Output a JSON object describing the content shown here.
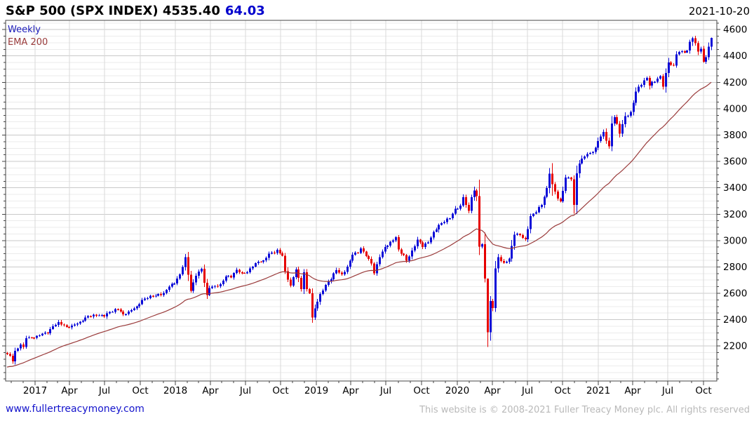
{
  "header": {
    "title_main": "S&P 500 (SPX INDEX) 4535.40",
    "change": "64.03",
    "date": "2021-10-20"
  },
  "legend": {
    "timeframe": "Weekly",
    "overlay": "EMA 200"
  },
  "footer": {
    "site": "www.fullertreacymoney.com",
    "copyright": "This website is © 2008-2021 Fuller Treacy Money plc. All rights reserved"
  },
  "chart_data": {
    "type": "candlestick",
    "title": "S&P 500 (SPX INDEX)",
    "last_price": 4535.4,
    "change": 64.03,
    "timeframe": "Weekly",
    "overlay": "EMA 200 (200-day / 40-week exponential moving average)",
    "start_week": "2016-10-17",
    "weeks": 262,
    "y_axis": {
      "min": 1935,
      "max": 4670,
      "tick_labels": [
        2200,
        2400,
        2600,
        2800,
        3000,
        3200,
        3400,
        3600,
        3800,
        4000,
        4200,
        4400,
        4600
      ],
      "minor_step": 50
    },
    "x_axis": {
      "tick_labels": [
        "2017",
        "Apr",
        "Jul",
        "Oct",
        "2018",
        "Apr",
        "Jul",
        "Oct",
        "2019",
        "Apr",
        "Jul",
        "Oct",
        "2020",
        "Apr",
        "Jul",
        "Oct",
        "2021",
        "Apr",
        "Jul",
        "Oct"
      ],
      "note": "labeled ticks at quarter starts, minor ticks monthly"
    },
    "ema": {
      "period_weeks": 40,
      "seed": 2035
    },
    "close_anchors": [
      [
        0,
        2141
      ],
      [
        1,
        2126
      ],
      [
        2,
        2085
      ],
      [
        3,
        2164
      ],
      [
        4,
        2182
      ],
      [
        5,
        2213
      ],
      [
        6,
        2192
      ],
      [
        7,
        2260
      ],
      [
        9,
        2264
      ],
      [
        11,
        2277
      ],
      [
        13,
        2294
      ],
      [
        15,
        2297
      ],
      [
        17,
        2351
      ],
      [
        19,
        2383
      ],
      [
        22,
        2344
      ],
      [
        24,
        2356
      ],
      [
        27,
        2384
      ],
      [
        29,
        2416
      ],
      [
        32,
        2439
      ],
      [
        34,
        2433
      ],
      [
        36,
        2425
      ],
      [
        38,
        2459
      ],
      [
        41,
        2477
      ],
      [
        43,
        2441
      ],
      [
        45,
        2461
      ],
      [
        48,
        2502
      ],
      [
        50,
        2549
      ],
      [
        53,
        2581
      ],
      [
        55,
        2582
      ],
      [
        58,
        2602
      ],
      [
        60,
        2652
      ],
      [
        62,
        2674
      ],
      [
        64,
        2743
      ],
      [
        66,
        2873
      ],
      [
        68,
        2620
      ],
      [
        70,
        2732
      ],
      [
        72,
        2787
      ],
      [
        74,
        2588
      ],
      [
        75,
        2641
      ],
      [
        77,
        2656
      ],
      [
        79,
        2670
      ],
      [
        81,
        2728
      ],
      [
        83,
        2721
      ],
      [
        85,
        2779
      ],
      [
        87,
        2755
      ],
      [
        89,
        2760
      ],
      [
        91,
        2802
      ],
      [
        93,
        2840
      ],
      [
        95,
        2850
      ],
      [
        97,
        2902
      ],
      [
        99,
        2905
      ],
      [
        100,
        2930
      ],
      [
        102,
        2886
      ],
      [
        103,
        2767
      ],
      [
        105,
        2659
      ],
      [
        106,
        2723
      ],
      [
        107,
        2781
      ],
      [
        109,
        2632
      ],
      [
        110,
        2760
      ],
      [
        111,
        2633
      ],
      [
        112,
        2600
      ],
      [
        113,
        2417
      ],
      [
        114,
        2486
      ],
      [
        116,
        2596
      ],
      [
        118,
        2665
      ],
      [
        120,
        2707
      ],
      [
        122,
        2776
      ],
      [
        124,
        2743
      ],
      [
        126,
        2801
      ],
      [
        128,
        2893
      ],
      [
        130,
        2905
      ],
      [
        131,
        2940
      ],
      [
        133,
        2881
      ],
      [
        135,
        2826
      ],
      [
        136,
        2752
      ],
      [
        138,
        2873
      ],
      [
        140,
        2950
      ],
      [
        142,
        2990
      ],
      [
        144,
        3026
      ],
      [
        145,
        2932
      ],
      [
        147,
        2889
      ],
      [
        148,
        2847
      ],
      [
        150,
        2926
      ],
      [
        152,
        3007
      ],
      [
        154,
        2952
      ],
      [
        156,
        2986
      ],
      [
        158,
        3067
      ],
      [
        160,
        3120
      ],
      [
        162,
        3141
      ],
      [
        164,
        3169
      ],
      [
        166,
        3240
      ],
      [
        168,
        3265
      ],
      [
        169,
        3330
      ],
      [
        171,
        3225
      ],
      [
        172,
        3328
      ],
      [
        173,
        3380
      ],
      [
        174,
        3337
      ],
      [
        175,
        2954
      ],
      [
        176,
        2972
      ],
      [
        177,
        2711
      ],
      [
        178,
        2305
      ],
      [
        179,
        2541
      ],
      [
        180,
        2489
      ],
      [
        181,
        2790
      ],
      [
        182,
        2875
      ],
      [
        184,
        2831
      ],
      [
        186,
        2864
      ],
      [
        188,
        3044
      ],
      [
        190,
        3041
      ],
      [
        192,
        3009
      ],
      [
        194,
        3185
      ],
      [
        196,
        3216
      ],
      [
        198,
        3271
      ],
      [
        200,
        3397
      ],
      [
        201,
        3508
      ],
      [
        202,
        3427
      ],
      [
        204,
        3319
      ],
      [
        205,
        3298
      ],
      [
        207,
        3477
      ],
      [
        209,
        3465
      ],
      [
        210,
        3270
      ],
      [
        211,
        3509
      ],
      [
        212,
        3585
      ],
      [
        214,
        3638
      ],
      [
        216,
        3663
      ],
      [
        218,
        3703
      ],
      [
        219,
        3756
      ],
      [
        221,
        3825
      ],
      [
        223,
        3714
      ],
      [
        224,
        3887
      ],
      [
        225,
        3935
      ],
      [
        227,
        3811
      ],
      [
        229,
        3943
      ],
      [
        231,
        3975
      ],
      [
        233,
        4129
      ],
      [
        235,
        4180
      ],
      [
        237,
        4233
      ],
      [
        238,
        4174
      ],
      [
        240,
        4204
      ],
      [
        242,
        4247
      ],
      [
        243,
        4166
      ],
      [
        245,
        4352
      ],
      [
        247,
        4327
      ],
      [
        248,
        4412
      ],
      [
        250,
        4437
      ],
      [
        252,
        4442
      ],
      [
        253,
        4509
      ],
      [
        254,
        4535
      ],
      [
        256,
        4433
      ],
      [
        257,
        4455
      ],
      [
        258,
        4357
      ],
      [
        259,
        4391
      ],
      [
        260,
        4471
      ],
      [
        261,
        4536
      ]
    ],
    "wick_overrides": {
      "174": [
        3393,
        3300
      ],
      "178": [
        2470,
        2192
      ],
      "202": [
        3588,
        3340
      ],
      "254": [
        4546,
        4477
      ],
      "261": [
        4540,
        4445
      ]
    },
    "colors": {
      "up": "#0b0bd8",
      "down": "#e60000",
      "ema": "#9a3b3b",
      "grid_major": "#c9c9c9",
      "grid_minor": "#ebebeb",
      "grid_vertical": "#d9d9d9",
      "axis": "#444444",
      "tick_text": "#000000"
    }
  }
}
